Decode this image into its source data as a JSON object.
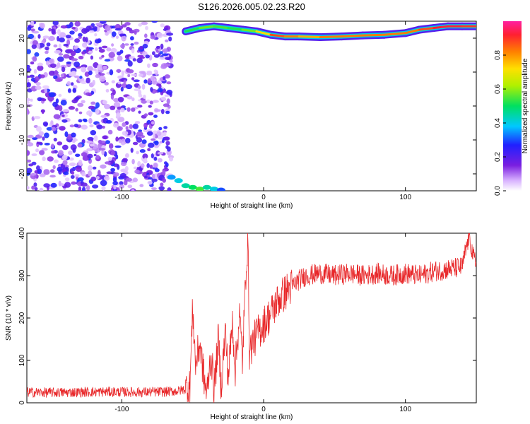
{
  "title": "S126.2026.005.02.23.R20",
  "chart_data": [
    {
      "type": "heatmap",
      "xlabel": "Height of straight line (km)",
      "ylabel": "Frequency (Hz)",
      "xlim": [
        -167,
        150
      ],
      "ylim": [
        -25,
        25
      ],
      "xticks": [
        -100,
        0,
        100
      ],
      "yticks": [
        -20,
        -10,
        0,
        10,
        20
      ],
      "colorbar": {
        "label": "Normalized spectral amplitude",
        "ticks": [
          "0.0",
          "0.2",
          "0.4",
          "0.6",
          "0.8"
        ],
        "tick_values": [
          0.0,
          0.2,
          0.4,
          0.6,
          0.8
        ],
        "range": [
          0,
          1
        ]
      },
      "ridge": {
        "description_free_values": true,
        "x": [
          -55,
          -45,
          -35,
          -25,
          -15,
          -5,
          5,
          15,
          25,
          40,
          55,
          70,
          85,
          100,
          110,
          120,
          130,
          140,
          150
        ],
        "frequency": [
          22,
          23,
          23.5,
          23,
          22.5,
          22,
          21,
          20.5,
          20.5,
          20.3,
          20.5,
          20.8,
          21,
          21.5,
          22.5,
          23,
          23.5,
          23.5,
          23.5
        ],
        "amplitude": [
          0.5,
          0.55,
          0.6,
          0.5,
          0.55,
          0.6,
          0.85,
          0.9,
          0.75,
          0.8,
          0.85,
          0.8,
          0.85,
          0.8,
          0.85,
          0.9,
          0.95,
          0.9,
          0.9
        ]
      },
      "noise_region": {
        "x_range": [
          -167,
          -65
        ],
        "frequency_range": [
          -25,
          25
        ],
        "amplitude_range": [
          0.0,
          0.25
        ]
      },
      "lower_branch": {
        "x": [
          -65,
          -60,
          -55,
          -50,
          -45,
          -40,
          -35,
          -30
        ],
        "frequency": [
          -21,
          -22,
          -23.5,
          -24,
          -24.5,
          -24,
          -24.5,
          -24.8
        ],
        "amplitude": [
          0.35,
          0.4,
          0.45,
          0.5,
          0.55,
          0.45,
          0.4,
          0.3
        ]
      }
    },
    {
      "type": "line",
      "xlabel": "Height of straight line (km)",
      "ylabel": "SNR (10 * v/v)",
      "xlim": [
        -167,
        150
      ],
      "ylim": [
        0,
        400
      ],
      "xticks": [
        -100,
        0,
        100
      ],
      "yticks": [
        0,
        100,
        200,
        300,
        400
      ],
      "color": "#e8282a",
      "series": [
        {
          "x": [
            -167,
            -150,
            -130,
            -110,
            -90,
            -70,
            -60,
            -52,
            -50,
            -48,
            -45,
            -42,
            -40,
            -37,
            -35,
            -32,
            -30,
            -27,
            -25,
            -22,
            -20,
            -17,
            -15,
            -12,
            -11,
            -10,
            -8,
            -5,
            -2,
            0,
            5,
            10,
            15,
            20,
            25,
            30,
            40,
            50,
            60,
            70,
            80,
            90,
            100,
            110,
            120,
            130,
            140,
            145,
            148,
            150
          ],
          "y": [
            25,
            24,
            25,
            26,
            25,
            26,
            28,
            35,
            225,
            90,
            140,
            55,
            20,
            120,
            25,
            150,
            40,
            170,
            60,
            190,
            80,
            210,
            100,
            350,
            375,
            120,
            140,
            160,
            175,
            185,
            210,
            240,
            260,
            275,
            290,
            300,
            305,
            300,
            305,
            300,
            305,
            300,
            305,
            300,
            310,
            315,
            320,
            395,
            340,
            330
          ]
        }
      ]
    }
  ]
}
